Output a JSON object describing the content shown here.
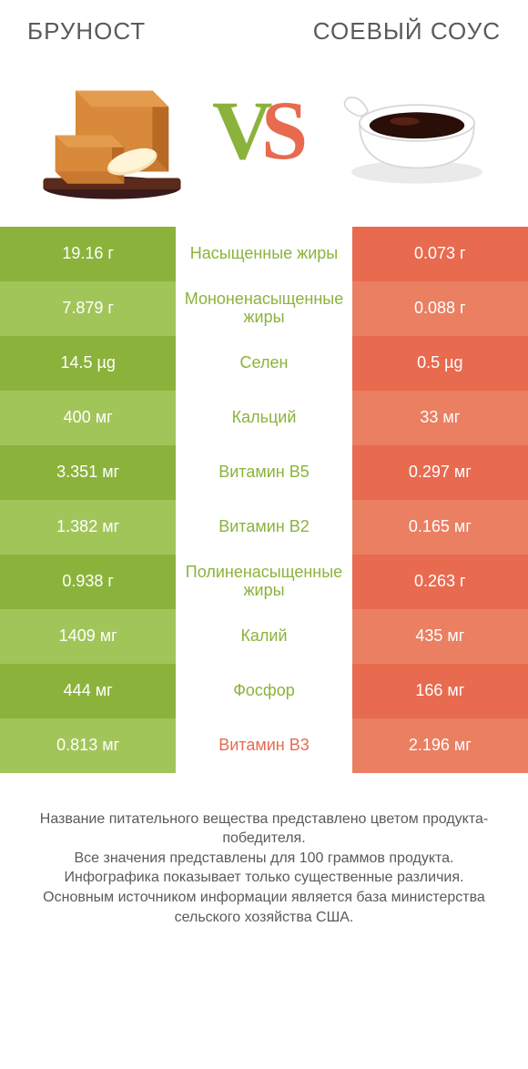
{
  "colors": {
    "green_dark": "#8bb33b",
    "green_light": "#a2c55a",
    "orange_dark": "#e86a4f",
    "orange_light": "#ea7f62",
    "mid_green_text": "#8bb33b",
    "mid_orange_text": "#e86a4f",
    "header_text": "#5a5a5a",
    "background": "#ffffff"
  },
  "header": {
    "left_title": "БРУНОСТ",
    "right_title": "СОЕВЫЙ СОУС",
    "vs_text": "VS"
  },
  "rows": [
    {
      "left": "19.16 г",
      "mid": "Насыщенные жиры",
      "right": "0.073 г",
      "winner": "left"
    },
    {
      "left": "7.879 г",
      "mid": "Мононенасыщенные жиры",
      "right": "0.088 г",
      "winner": "left"
    },
    {
      "left": "14.5 µg",
      "mid": "Селен",
      "right": "0.5 µg",
      "winner": "left"
    },
    {
      "left": "400 мг",
      "mid": "Кальций",
      "right": "33 мг",
      "winner": "left"
    },
    {
      "left": "3.351 мг",
      "mid": "Витамин B5",
      "right": "0.297 мг",
      "winner": "left"
    },
    {
      "left": "1.382 мг",
      "mid": "Витамин B2",
      "right": "0.165 мг",
      "winner": "left"
    },
    {
      "left": "0.938 г",
      "mid": "Полиненасыщенные жиры",
      "right": "0.263 г",
      "winner": "left"
    },
    {
      "left": "1409 мг",
      "mid": "Калий",
      "right": "435 мг",
      "winner": "left"
    },
    {
      "left": "444 мг",
      "mid": "Фосфор",
      "right": "166 мг",
      "winner": "left"
    },
    {
      "left": "0.813 мг",
      "mid": "Витамин B3",
      "right": "2.196 мг",
      "winner": "right"
    }
  ],
  "footnote_lines": [
    "Название питательного вещества представлено цветом продукта-победителя.",
    "Все значения представлены для 100 граммов продукта.",
    "Инфографика показывает только существенные различия.",
    "Основным источником информации является база министерства сельского хозяйства США."
  ],
  "font_sizes": {
    "title": 26,
    "cell": 18,
    "footnote": 16
  }
}
